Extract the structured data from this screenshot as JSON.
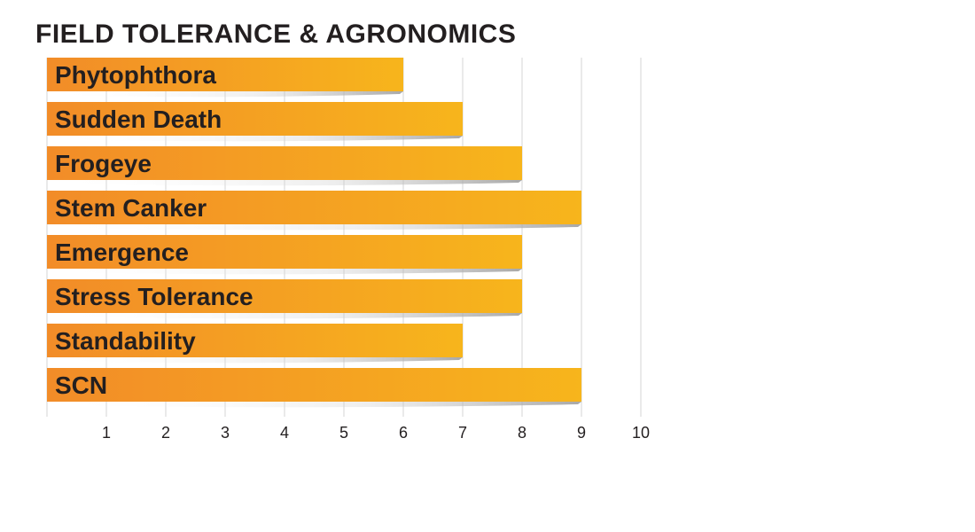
{
  "title": "FIELD TOLERANCE & AGRONOMICS",
  "colors": {
    "bar_start": "#f28c28",
    "bar_end": "#f7b51c",
    "label_text": "#231f20",
    "grid": "#d4d4d4",
    "shadow": "#bdbdbd"
  },
  "chart_data": {
    "type": "bar",
    "orientation": "horizontal",
    "title": "FIELD TOLERANCE & AGRONOMICS",
    "categories": [
      "Phytophthora",
      "Sudden Death",
      "Frogeye",
      "Stem Canker",
      "Emergence",
      "Stress Tolerance",
      "Standability",
      "SCN"
    ],
    "values": [
      6,
      7,
      8,
      9,
      8,
      8,
      7,
      9
    ],
    "xlim": [
      0,
      10
    ],
    "x_ticks": [
      "1",
      "2",
      "3",
      "4",
      "5",
      "6",
      "7",
      "8",
      "9",
      "10"
    ],
    "grid": true,
    "xlabel": "",
    "ylabel": ""
  }
}
